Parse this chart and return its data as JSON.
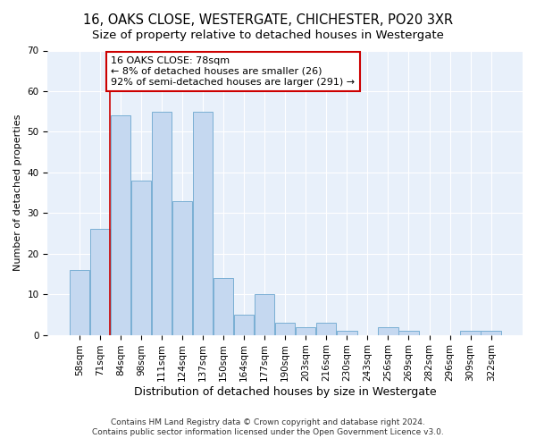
{
  "title": "16, OAKS CLOSE, WESTERGATE, CHICHESTER, PO20 3XR",
  "subtitle": "Size of property relative to detached houses in Westergate",
  "xlabel": "Distribution of detached houses by size in Westergate",
  "ylabel": "Number of detached properties",
  "categories": [
    "58sqm",
    "71sqm",
    "84sqm",
    "98sqm",
    "111sqm",
    "124sqm",
    "137sqm",
    "150sqm",
    "164sqm",
    "177sqm",
    "190sqm",
    "203sqm",
    "216sqm",
    "230sqm",
    "243sqm",
    "256sqm",
    "269sqm",
    "282sqm",
    "296sqm",
    "309sqm",
    "322sqm"
  ],
  "values": [
    16,
    26,
    54,
    38,
    55,
    33,
    55,
    14,
    5,
    10,
    3,
    2,
    3,
    1,
    0,
    2,
    1,
    0,
    0,
    1,
    1
  ],
  "bar_color": "#c5d8f0",
  "bar_edge_color": "#7aafd4",
  "background_color": "#ffffff",
  "plot_bg_color": "#e8f0fa",
  "grid_color": "#ffffff",
  "vline_x_index": 1,
  "vline_color": "#cc0000",
  "annotation_line1": "16 OAKS CLOSE: 78sqm",
  "annotation_line2": "← 8% of detached houses are smaller (26)",
  "annotation_line3": "92% of semi-detached houses are larger (291) →",
  "annotation_box_color": "#ffffff",
  "annotation_box_edge": "#cc0000",
  "ylim": [
    0,
    70
  ],
  "yticks": [
    0,
    10,
    20,
    30,
    40,
    50,
    60,
    70
  ],
  "footnote1": "Contains HM Land Registry data © Crown copyright and database right 2024.",
  "footnote2": "Contains public sector information licensed under the Open Government Licence v3.0.",
  "title_fontsize": 10.5,
  "subtitle_fontsize": 9.5,
  "xlabel_fontsize": 9,
  "ylabel_fontsize": 8,
  "tick_fontsize": 7.5,
  "footnote_fontsize": 6.5,
  "annotation_fontsize": 8
}
